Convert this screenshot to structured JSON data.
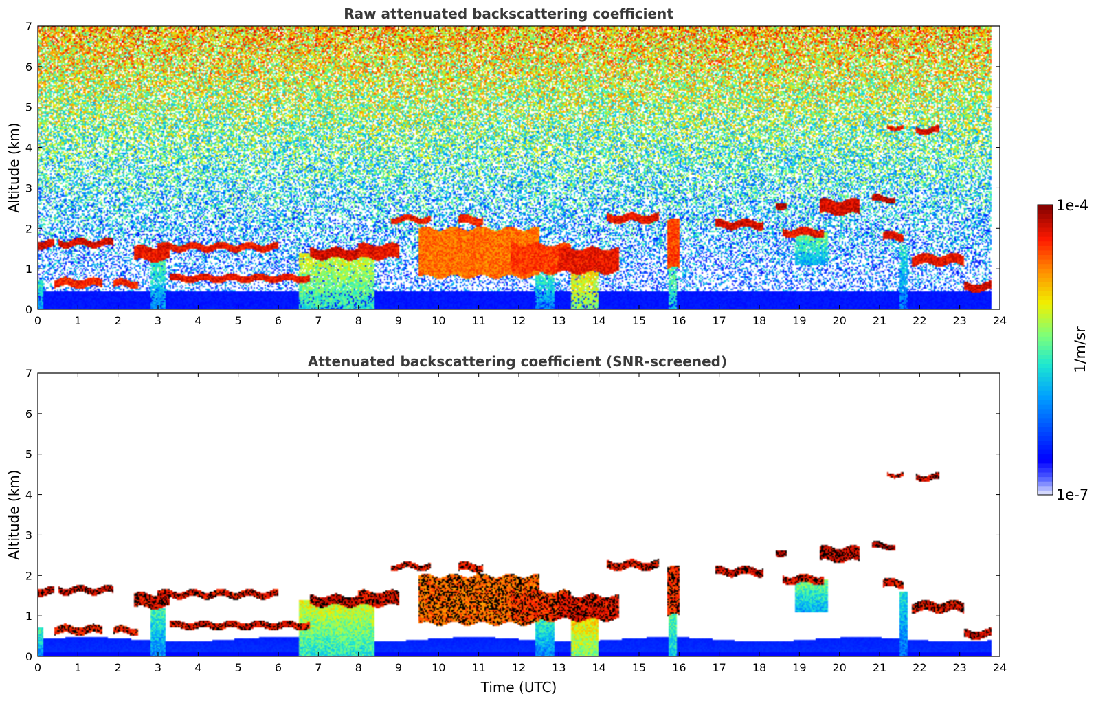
{
  "chart_data": [
    {
      "type": "heatmap",
      "title": "Raw attenuated backscattering coefficient",
      "xlabel": "",
      "ylabel": "Altitude (km)",
      "xlim": [
        0,
        24
      ],
      "ylim": [
        0,
        7
      ],
      "xticks": [
        0,
        1,
        2,
        3,
        4,
        5,
        6,
        7,
        8,
        9,
        10,
        11,
        12,
        13,
        14,
        15,
        16,
        17,
        18,
        19,
        20,
        21,
        22,
        23,
        24
      ],
      "yticks": [
        0,
        1,
        2,
        3,
        4,
        5,
        6,
        7
      ],
      "background": "noisy",
      "layers": [
        {
          "x0": 0.0,
          "x1": 0.4,
          "y0": 1.5,
          "y1": 1.7,
          "level": 0.92
        },
        {
          "x0": 0.5,
          "x1": 1.9,
          "y0": 1.55,
          "y1": 1.72,
          "level": 0.92
        },
        {
          "x0": 2.4,
          "x1": 3.3,
          "y0": 1.2,
          "y1": 1.55,
          "level": 0.9
        },
        {
          "x0": 3.0,
          "x1": 6.0,
          "y0": 1.45,
          "y1": 1.62,
          "level": 0.9
        },
        {
          "x0": 0.4,
          "x1": 1.6,
          "y0": 0.55,
          "y1": 0.75,
          "level": 0.88
        },
        {
          "x0": 1.9,
          "x1": 2.5,
          "y0": 0.55,
          "y1": 0.72,
          "level": 0.88
        },
        {
          "x0": 3.3,
          "x1": 6.8,
          "y0": 0.68,
          "y1": 0.85,
          "level": 0.9
        },
        {
          "x0": 6.8,
          "x1": 8.0,
          "y0": 1.25,
          "y1": 1.5,
          "level": 0.93
        },
        {
          "x0": 8.0,
          "x1": 9.0,
          "y0": 1.25,
          "y1": 1.6,
          "level": 0.9
        },
        {
          "x0": 8.8,
          "x1": 9.8,
          "y0": 2.15,
          "y1": 2.3,
          "level": 0.9
        },
        {
          "x0": 10.5,
          "x1": 11.1,
          "y0": 2.1,
          "y1": 2.3,
          "level": 0.88
        },
        {
          "x0": 9.5,
          "x1": 12.5,
          "y0": 0.8,
          "y1": 2.0,
          "level": 0.8
        },
        {
          "x0": 11.8,
          "x1": 13.3,
          "y0": 0.9,
          "y1": 1.6,
          "level": 0.85
        },
        {
          "x0": 13.0,
          "x1": 14.5,
          "y0": 0.9,
          "y1": 1.5,
          "level": 0.9
        },
        {
          "x0": 14.2,
          "x1": 15.5,
          "y0": 2.15,
          "y1": 2.35,
          "level": 0.9
        },
        {
          "x0": 15.7,
          "x1": 16.0,
          "y0": 1.0,
          "y1": 2.2,
          "level": 0.85
        },
        {
          "x0": 16.9,
          "x1": 18.1,
          "y0": 2.0,
          "y1": 2.2,
          "level": 0.92
        },
        {
          "x0": 18.4,
          "x1": 18.7,
          "y0": 2.5,
          "y1": 2.65,
          "level": 0.95
        },
        {
          "x0": 18.6,
          "x1": 19.6,
          "y0": 1.8,
          "y1": 2.0,
          "level": 0.9
        },
        {
          "x0": 19.5,
          "x1": 20.5,
          "y0": 2.35,
          "y1": 2.7,
          "level": 0.92
        },
        {
          "x0": 20.8,
          "x1": 21.4,
          "y0": 2.65,
          "y1": 2.8,
          "level": 0.94
        },
        {
          "x0": 21.2,
          "x1": 21.6,
          "y0": 4.45,
          "y1": 4.55,
          "level": 0.9
        },
        {
          "x0": 21.9,
          "x1": 22.5,
          "y0": 4.35,
          "y1": 4.5,
          "level": 0.92
        },
        {
          "x0": 21.1,
          "x1": 21.6,
          "y0": 1.7,
          "y1": 1.9,
          "level": 0.9
        },
        {
          "x0": 21.8,
          "x1": 23.1,
          "y0": 1.1,
          "y1": 1.35,
          "level": 0.9
        },
        {
          "x0": 23.1,
          "x1": 23.8,
          "y0": 0.45,
          "y1": 0.65,
          "level": 0.93
        }
      ],
      "plumes": [
        {
          "x0": 0.0,
          "x1": 0.15,
          "y1": 0.7,
          "level": 0.5
        },
        {
          "x0": 2.8,
          "x1": 3.2,
          "y1": 1.2,
          "level": 0.5
        },
        {
          "x0": 6.5,
          "x1": 8.4,
          "y1": 1.4,
          "level": 0.65
        },
        {
          "x0": 12.4,
          "x1": 12.9,
          "y1": 1.0,
          "level": 0.5
        },
        {
          "x0": 13.3,
          "x1": 14.0,
          "y1": 1.4,
          "level": 0.75
        },
        {
          "x0": 15.75,
          "x1": 15.95,
          "y1": 1.8,
          "level": 0.6
        },
        {
          "x0": 18.9,
          "x1": 19.7,
          "y0": 1.1,
          "y1": 1.9,
          "level": 0.55
        },
        {
          "x0": 21.5,
          "x1": 21.7,
          "y1": 1.6,
          "level": 0.45
        }
      ]
    },
    {
      "type": "heatmap",
      "title": "Attenuated backscattering coefficient (SNR-screened)",
      "xlabel": "Time (UTC)",
      "ylabel": "Altitude (km)",
      "xlim": [
        0,
        24
      ],
      "ylim": [
        0,
        7
      ],
      "xticks": [
        0,
        1,
        2,
        3,
        4,
        5,
        6,
        7,
        8,
        9,
        10,
        11,
        12,
        13,
        14,
        15,
        16,
        17,
        18,
        19,
        20,
        21,
        22,
        23,
        24
      ],
      "yticks": [
        0,
        1,
        2,
        3,
        4,
        5,
        6,
        7
      ],
      "background": "screened"
    }
  ],
  "colorbar": {
    "label": "1/m/sr",
    "min_label": "1e-7",
    "max_label": "1e-4",
    "scale": "log",
    "vmin": 1e-07,
    "vmax": 0.0001,
    "colormap": "jet"
  },
  "colors": {
    "title": "#3a3a3a",
    "frame": "#000000"
  }
}
